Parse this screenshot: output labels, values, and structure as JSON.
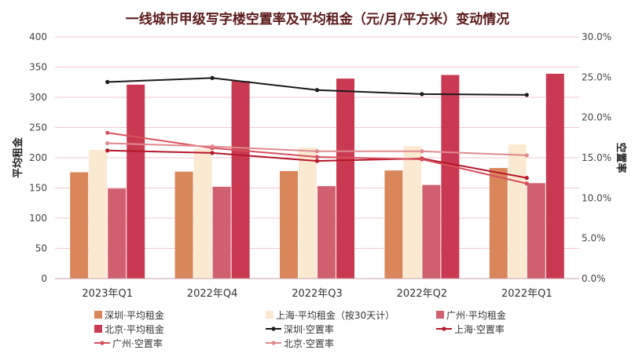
{
  "chart_data": {
    "type": "bar",
    "title": "一线城市甲级写字楼空置率及平均租金（元/月/平方米）变动情况",
    "ylabel": "平均租金",
    "y2label": "空置率",
    "ylim": [
      0,
      400
    ],
    "y2lim": [
      0,
      30
    ],
    "yticks": [
      "0",
      "50",
      "100",
      "150",
      "200",
      "250",
      "300",
      "350",
      "400"
    ],
    "y2ticks": [
      "0.0%",
      "5.0%",
      "10.0%",
      "15.0%",
      "20.0%",
      "25.0%",
      "30.0%"
    ],
    "categories": [
      "2023年Q1",
      "2022年Q4",
      "2022年Q3",
      "2022年Q2",
      "2022年Q1"
    ],
    "grid": true,
    "legend_position": "bottom",
    "bar_series": [
      {
        "name": "深圳·平均租金",
        "values": [
          176,
          177,
          178,
          179,
          183
        ],
        "color": "#d9875a"
      },
      {
        "name": "上海·平均租金（按30天计）",
        "values": [
          213,
          215,
          217,
          219,
          222
        ],
        "color": "#fbe9d2"
      },
      {
        "name": "广州·平均租金",
        "values": [
          149,
          152,
          153,
          155,
          158
        ],
        "color": "#d06070"
      },
      {
        "name": "北京·平均租金",
        "values": [
          321,
          327,
          331,
          337,
          339
        ],
        "color": "#c93a52"
      }
    ],
    "line_series": [
      {
        "name": "深圳·空置率",
        "values": [
          24.4,
          24.9,
          23.4,
          22.9,
          22.8
        ],
        "color": "#1a1a1a"
      },
      {
        "name": "上海·空置率",
        "values": [
          15.9,
          15.6,
          14.6,
          14.9,
          12.5
        ],
        "color": "#b5172b"
      },
      {
        "name": "广州·空置率",
        "values": [
          18.1,
          16.2,
          15.1,
          14.8,
          11.8
        ],
        "color": "#d8505e"
      },
      {
        "name": "北京·空置率",
        "values": [
          16.8,
          16.4,
          15.8,
          15.8,
          15.3
        ],
        "color": "#e08a8e"
      }
    ]
  }
}
